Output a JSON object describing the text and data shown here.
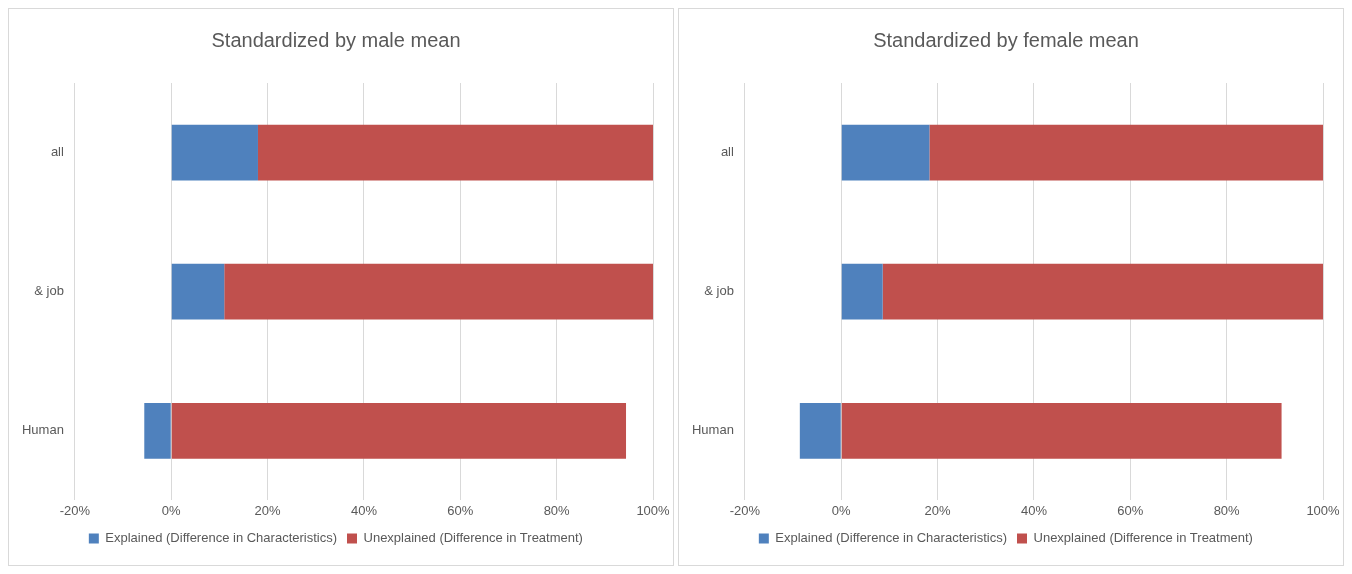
{
  "chart_data": [
    {
      "type": "bar",
      "title": "Standardized by male mean",
      "orientation": "horizontal",
      "stacked": true,
      "categories": [
        "all",
        "& job",
        "Human"
      ],
      "series": [
        {
          "name": "Explained (Difference in Characteristics)",
          "color": "#4f81bd",
          "values": [
            18,
            11,
            -5.6
          ]
        },
        {
          "name": "Unexplained (Difference in Treatment)",
          "color": "#c0504d",
          "values": [
            82,
            89,
            94.4
          ]
        }
      ],
      "xlim": [
        -20,
        100
      ],
      "xticks": [
        {
          "value": -20,
          "label": "-20%"
        },
        {
          "value": 0,
          "label": "0%"
        },
        {
          "value": 20,
          "label": "20%"
        },
        {
          "value": 40,
          "label": "40%"
        },
        {
          "value": 60,
          "label": "60%"
        },
        {
          "value": 80,
          "label": "80%"
        },
        {
          "value": 100,
          "label": "100%"
        }
      ],
      "grid": "x",
      "legend": "bottom"
    },
    {
      "type": "bar",
      "title": "Standardized by female mean",
      "orientation": "horizontal",
      "stacked": true,
      "categories": [
        "all",
        "& job",
        "Human"
      ],
      "series": [
        {
          "name": "Explained (Difference in Characteristics)",
          "color": "#4f81bd",
          "values": [
            18.3,
            8.6,
            -8.6
          ]
        },
        {
          "name": "Unexplained (Difference in Treatment)",
          "color": "#c0504d",
          "values": [
            81.7,
            91.4,
            91.4
          ]
        }
      ],
      "xlim": [
        -20,
        100
      ],
      "xticks": [
        {
          "value": -20,
          "label": "-20%"
        },
        {
          "value": 0,
          "label": "0%"
        },
        {
          "value": 20,
          "label": "20%"
        },
        {
          "value": 40,
          "label": "40%"
        },
        {
          "value": 60,
          "label": "60%"
        },
        {
          "value": 80,
          "label": "80%"
        },
        {
          "value": 100,
          "label": "100%"
        }
      ],
      "grid": "x",
      "legend": "bottom"
    }
  ]
}
